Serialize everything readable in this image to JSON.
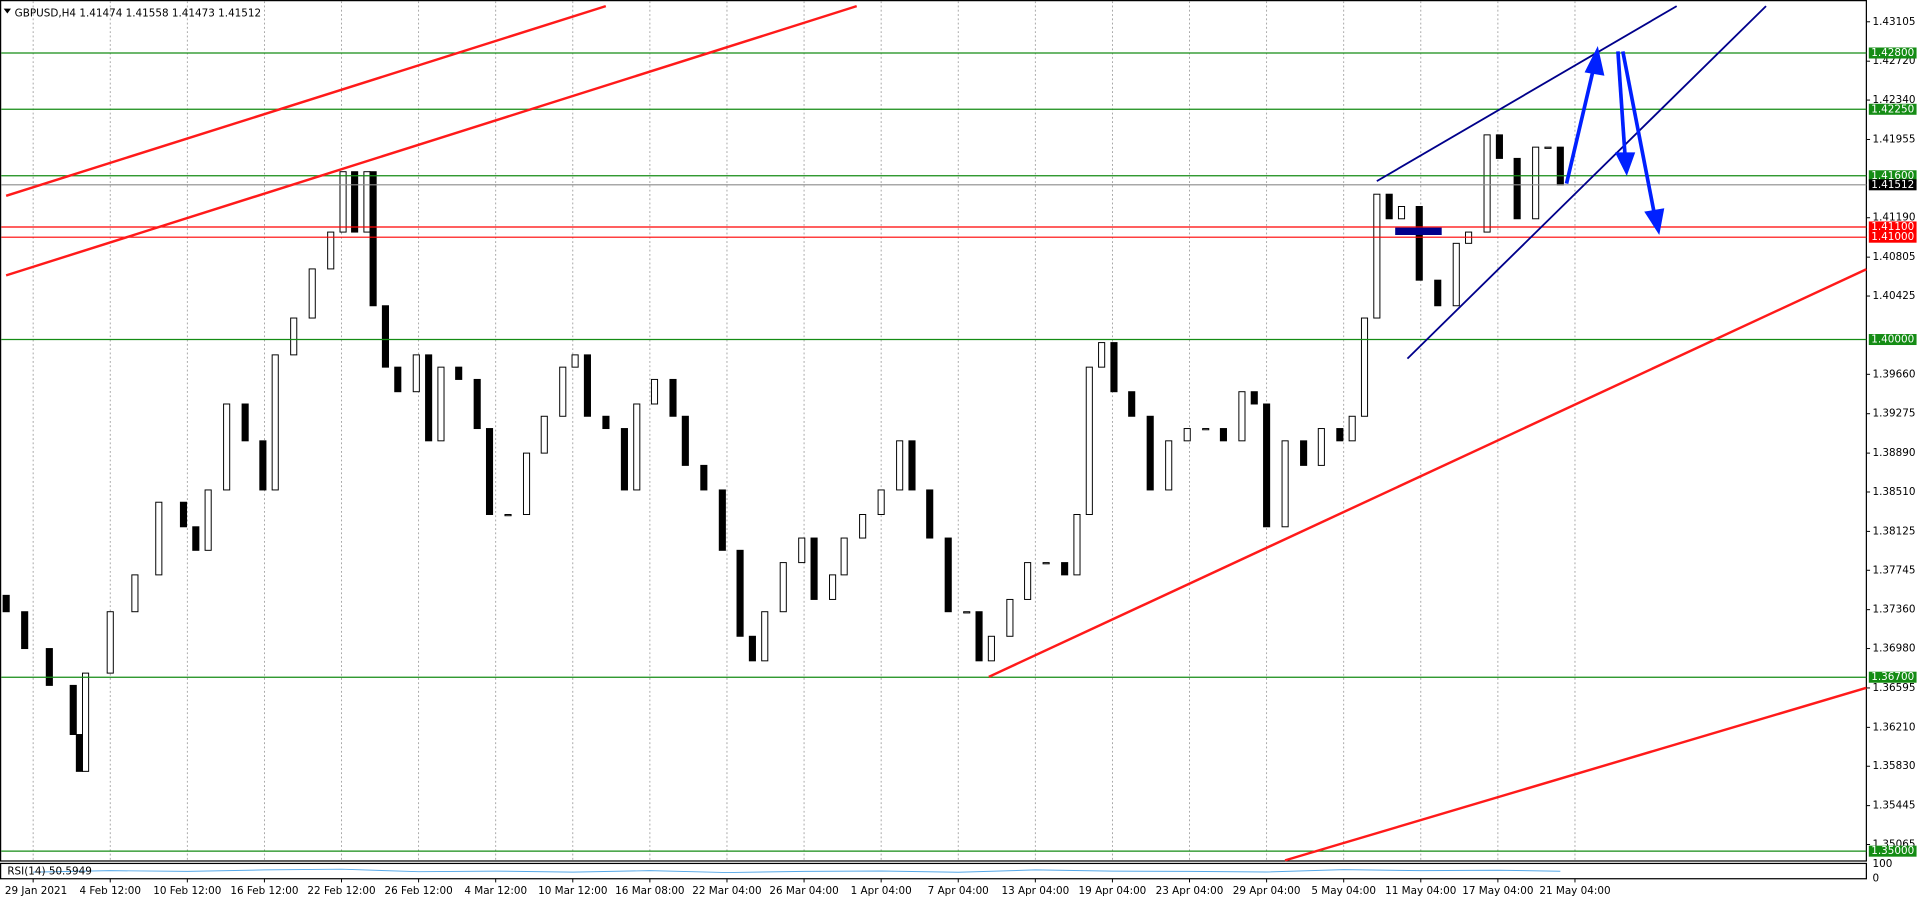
{
  "chart_data": {
    "type": "candlestick",
    "title": "GBPUSD,H4  1.41474 1.41558 1.41473 1.41512",
    "bull_color": "#ffffff",
    "bear_color": "#000000",
    "x": [
      -0.35,
      -0.11,
      0.21,
      0.52,
      0.6,
      0.68,
      1.0,
      1.32,
      1.63,
      1.95,
      2.11,
      2.27,
      2.51,
      2.75,
      2.98,
      3.14,
      3.38,
      3.62,
      3.86,
      4.02,
      4.17,
      4.33,
      4.41,
      4.57,
      4.73,
      4.97,
      5.13,
      5.29,
      5.52,
      5.76,
      5.92,
      6.16,
      6.4,
      6.63,
      6.87,
      7.03,
      7.19,
      7.43,
      7.67,
      7.83,
      8.06,
      8.3,
      8.46,
      8.7,
      8.94,
      9.17,
      9.33,
      9.49,
      9.73,
      9.97,
      10.13,
      10.37,
      10.52,
      10.76,
      11.0,
      11.24,
      11.4,
      11.63,
      11.87,
      12.11,
      12.27,
      12.43,
      12.67,
      12.9,
      13.14,
      13.38,
      13.54,
      13.7,
      13.86,
      14.02,
      14.25,
      14.49,
      14.73,
      14.97,
      15.21,
      15.44,
      15.68,
      15.84,
      16.0,
      16.24,
      16.48,
      16.71,
      16.95,
      17.11,
      17.27,
      17.43,
      17.59,
      17.75,
      17.98,
      18.22,
      18.46,
      18.62,
      18.86,
      19.02,
      19.25,
      19.49,
      19.65,
      19.81
    ],
    "open": [
      1.375,
      1.3734,
      1.3698,
      1.3662,
      1.3614,
      1.3578,
      1.3674,
      1.3734,
      1.377,
      1.3841,
      1.3817,
      1.3794,
      1.3853,
      1.3937,
      1.3901,
      1.3853,
      1.3985,
      1.4021,
      1.4069,
      1.4105,
      1.4164,
      1.4105,
      1.4164,
      1.4033,
      1.3973,
      1.3949,
      1.3985,
      1.3901,
      1.3973,
      1.3961,
      1.3913,
      1.3829,
      1.3829,
      1.3889,
      1.3925,
      1.3973,
      1.3985,
      1.3925,
      1.3913,
      1.3853,
      1.3937,
      1.3961,
      1.3925,
      1.3877,
      1.3853,
      1.3794,
      1.371,
      1.3686,
      1.3734,
      1.3782,
      1.3806,
      1.3746,
      1.377,
      1.3806,
      1.3829,
      1.3853,
      1.3901,
      1.3853,
      1.3806,
      1.3734,
      1.3734,
      1.3686,
      1.371,
      1.3746,
      1.3782,
      1.3782,
      1.377,
      1.3829,
      1.3973,
      1.3997,
      1.3949,
      1.3925,
      1.3853,
      1.3901,
      1.3913,
      1.3913,
      1.3901,
      1.3949,
      1.3937,
      1.3817,
      1.3901,
      1.3877,
      1.3913,
      1.3901,
      1.3925,
      1.4021,
      1.4142,
      1.4118,
      1.413,
      1.4058,
      1.4033,
      1.4094,
      1.4105,
      1.42,
      1.4177,
      1.4118,
      1.4188,
      1.4188
    ],
    "close": [
      1.3734,
      1.3698,
      1.3662,
      1.3614,
      1.3578,
      1.3674,
      1.3734,
      1.377,
      1.3841,
      1.3817,
      1.3794,
      1.3853,
      1.3937,
      1.3901,
      1.3853,
      1.3985,
      1.4021,
      1.4069,
      1.4105,
      1.4164,
      1.4105,
      1.4164,
      1.4033,
      1.3973,
      1.3949,
      1.3985,
      1.3901,
      1.3973,
      1.3961,
      1.3913,
      1.3829,
      1.3829,
      1.3889,
      1.3925,
      1.3973,
      1.3985,
      1.3925,
      1.3913,
      1.3853,
      1.3937,
      1.3961,
      1.3925,
      1.3877,
      1.3853,
      1.3794,
      1.371,
      1.3686,
      1.3734,
      1.3782,
      1.3806,
      1.3746,
      1.377,
      1.3806,
      1.3829,
      1.3853,
      1.3901,
      1.3853,
      1.3806,
      1.3734,
      1.3734,
      1.3686,
      1.371,
      1.3746,
      1.3782,
      1.3782,
      1.377,
      1.3829,
      1.3973,
      1.3997,
      1.3949,
      1.3925,
      1.3853,
      1.3901,
      1.3913,
      1.3913,
      1.3901,
      1.3949,
      1.3937,
      1.3817,
      1.3901,
      1.3877,
      1.3913,
      1.3901,
      1.3925,
      1.4021,
      1.4142,
      1.4118,
      1.413,
      1.4058,
      1.4033,
      1.4094,
      1.4105,
      1.42,
      1.4177,
      1.4118,
      1.4188,
      1.4188,
      1.4151
    ],
    "xlim": [
      -0.43,
      23.78
    ],
    "ylim": [
      1.3491,
      1.4327
    ],
    "grid": true,
    "xticks": [
      {
        "value": 0,
        "label": "29 Jan 2021"
      },
      {
        "value": 1,
        "label": "4 Feb 12:00"
      },
      {
        "value": 2,
        "label": "10 Feb 12:00"
      },
      {
        "value": 3,
        "label": "16 Feb 12:00"
      },
      {
        "value": 4,
        "label": "22 Feb 12:00"
      },
      {
        "value": 5,
        "label": "26 Feb 12:00"
      },
      {
        "value": 6,
        "label": "4 Mar 12:00"
      },
      {
        "value": 7,
        "label": "10 Mar 12:00"
      },
      {
        "value": 8,
        "label": "16 Mar 08:00"
      },
      {
        "value": 9,
        "label": "22 Mar 04:00"
      },
      {
        "value": 10,
        "label": "26 Mar 04:00"
      },
      {
        "value": 11,
        "label": "1 Apr 04:00"
      },
      {
        "value": 12,
        "label": "7 Apr 04:00"
      },
      {
        "value": 13,
        "label": "13 Apr 04:00"
      },
      {
        "value": 14,
        "label": "19 Apr 04:00"
      },
      {
        "value": 15,
        "label": "23 Apr 04:00"
      },
      {
        "value": 16,
        "label": "29 Apr 04:00"
      },
      {
        "value": 17,
        "label": "5 May 04:00"
      },
      {
        "value": 18,
        "label": "11 May 04:00"
      },
      {
        "value": 19,
        "label": "17 May 04:00"
      },
      {
        "value": 20,
        "label": "21 May 04:00"
      }
    ],
    "yticks": [
      1.43105,
      {
        "value": 1.4272,
        "label": "1.42720"
      },
      {
        "value": 1.4234,
        "label": "1.42340"
      },
      1.41955,
      {
        "value": 1.4119,
        "label": "1.41190"
      },
      1.40805,
      1.40425,
      {
        "value": 1.3966,
        "label": "1.39660"
      },
      1.39275,
      {
        "value": 1.3889,
        "label": "1.38890"
      },
      {
        "value": 1.3851,
        "label": "1.38510"
      },
      1.38125,
      1.37745,
      {
        "value": 1.3736,
        "label": "1.37360"
      },
      {
        "value": 1.3698,
        "label": "1.36980"
      },
      1.36595,
      {
        "value": 1.3621,
        "label": "1.36210"
      },
      {
        "value": 1.3583,
        "label": "1.35830"
      },
      1.35445,
      1.35065
    ],
    "levels": [
      {
        "value": 1.428,
        "label": "1.42800",
        "color": "#148c14"
      },
      {
        "value": 1.4225,
        "label": "1.42250",
        "color": "#148c14"
      },
      {
        "value": 1.416,
        "label": "1.41600",
        "color": "#148c14"
      },
      {
        "value": 1.41512,
        "label": "1.41512",
        "color": "#000000"
      },
      {
        "value": 1.411,
        "label": "1.41100",
        "color": "#ff0000"
      },
      {
        "value": 1.41,
        "label": "1.41000",
        "color": "#ff0000"
      },
      {
        "value": 1.4,
        "label": "1.40000",
        "color": "#148c14"
      },
      {
        "value": 1.367,
        "label": "1.36700",
        "color": "#148c14"
      },
      {
        "value": 1.35,
        "label": "1.35000",
        "color": "#148c14"
      }
    ],
    "rsi": {
      "label": "RSI(14) 50.5949",
      "color": "#56a8e8",
      "ylim": [
        0,
        100
      ],
      "yticks": [
        0,
        100
      ],
      "x": [
        0,
        1,
        2,
        3,
        4,
        5,
        6,
        7,
        8,
        9,
        10,
        11,
        12,
        13,
        14,
        15,
        16,
        17,
        18,
        19,
        19.81
      ],
      "values": [
        45,
        55,
        50,
        60,
        65,
        48,
        52,
        45,
        55,
        42,
        50,
        53,
        44,
        60,
        52,
        50,
        46,
        62,
        55,
        58,
        51
      ]
    }
  }
}
